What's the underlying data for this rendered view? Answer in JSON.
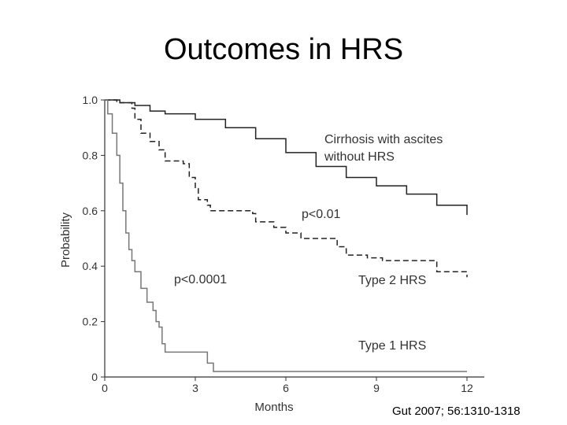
{
  "slide": {
    "title": "Outcomes in HRS",
    "citation": "Gut 2007; 56:1310-1318"
  },
  "chart_data": {
    "type": "line",
    "xlabel": "Months",
    "ylabel": "Probability",
    "xlim": [
      0,
      12
    ],
    "ylim": [
      0,
      1.0
    ],
    "x_ticks": [
      "0",
      "3",
      "6",
      "9",
      "12"
    ],
    "y_ticks": [
      "0",
      "0.2",
      "0.4",
      "0.6",
      "0.8",
      "1.0"
    ],
    "grid": false,
    "series": [
      {
        "name": "Cirrhosis with ascites without HRS",
        "style": "solid",
        "color": "#222222",
        "x": [
          0,
          0.5,
          1,
          1.5,
          2,
          3,
          4,
          5,
          6,
          7,
          8,
          9,
          10,
          11,
          12
        ],
        "y": [
          1.0,
          0.99,
          0.98,
          0.96,
          0.95,
          0.93,
          0.9,
          0.86,
          0.81,
          0.76,
          0.72,
          0.69,
          0.66,
          0.62,
          0.585
        ]
      },
      {
        "name": "Type 2 HRS",
        "style": "dashed",
        "color": "#222222",
        "x": [
          0,
          0.4,
          0.9,
          1.0,
          1.2,
          1.5,
          1.8,
          2.0,
          2.6,
          2.8,
          3.0,
          3.1,
          3.4,
          3.5,
          4.9,
          5.0,
          5.6,
          6.0,
          6.5,
          7.7,
          8.0,
          8.7,
          9.2,
          9.5,
          11.0,
          12.0
        ],
        "y": [
          1.0,
          0.99,
          0.97,
          0.93,
          0.88,
          0.85,
          0.82,
          0.78,
          0.77,
          0.72,
          0.68,
          0.64,
          0.62,
          0.6,
          0.59,
          0.56,
          0.54,
          0.52,
          0.5,
          0.47,
          0.44,
          0.43,
          0.42,
          0.42,
          0.38,
          0.36
        ]
      },
      {
        "name": "Type 1 HRS",
        "style": "solid",
        "color": "#777777",
        "x": [
          0,
          0.1,
          0.25,
          0.4,
          0.5,
          0.6,
          0.7,
          0.8,
          0.9,
          1.0,
          1.2,
          1.4,
          1.6,
          1.7,
          1.8,
          1.9,
          2.0,
          3.2,
          3.4,
          3.6,
          12.0
        ],
        "y": [
          1.0,
          0.95,
          0.88,
          0.8,
          0.7,
          0.6,
          0.52,
          0.46,
          0.42,
          0.38,
          0.32,
          0.27,
          0.24,
          0.2,
          0.18,
          0.12,
          0.09,
          0.09,
          0.05,
          0.02,
          0.02
        ]
      }
    ],
    "labels": {
      "cirrhosis_line1": "Cirrhosis with ascites",
      "cirrhosis_line2": "without HRS",
      "type2": "Type 2 HRS",
      "type1": "Type 1 HRS",
      "p_type2": "p<0.01",
      "p_type1": "p<0.0001"
    }
  }
}
